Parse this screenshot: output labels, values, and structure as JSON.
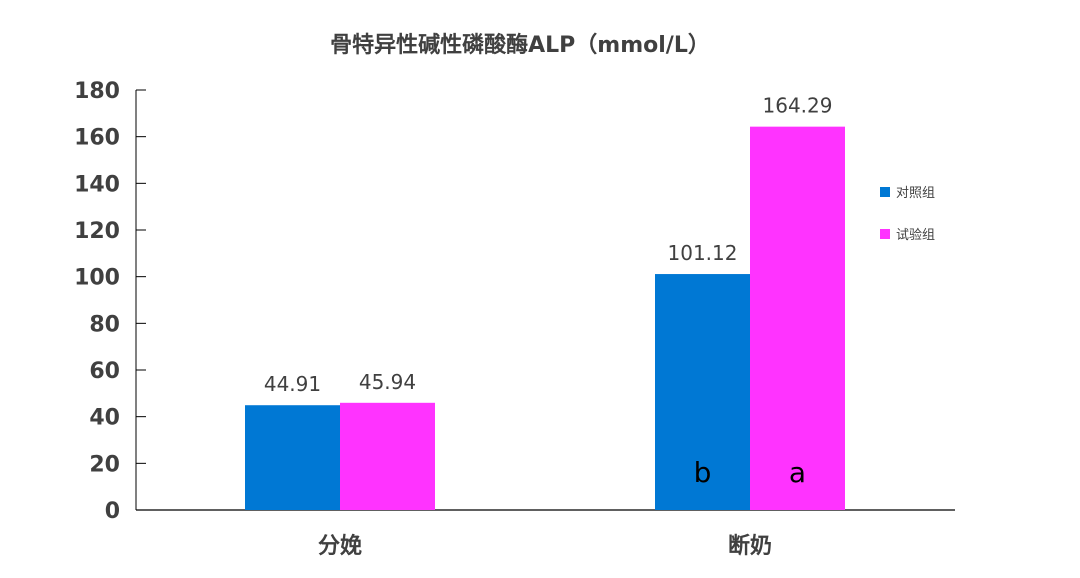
{
  "chart_data": {
    "type": "bar",
    "title": "骨特异性碱性磷酸酶ALP（mmol/L）",
    "categories": [
      "分娩",
      "断奶"
    ],
    "series": [
      {
        "name": "对照组",
        "values": [
          44.91,
          101.12
        ],
        "color": "#0078D4",
        "labels": [
          "",
          "b"
        ]
      },
      {
        "name": "试验组",
        "values": [
          45.94,
          164.29
        ],
        "color": "#FF33FF",
        "labels": [
          "",
          "a"
        ]
      }
    ],
    "ylim": [
      0,
      180
    ],
    "yticks": [
      0,
      20,
      40,
      60,
      80,
      100,
      120,
      140,
      160,
      180
    ],
    "legend": "right",
    "grid": false
  }
}
